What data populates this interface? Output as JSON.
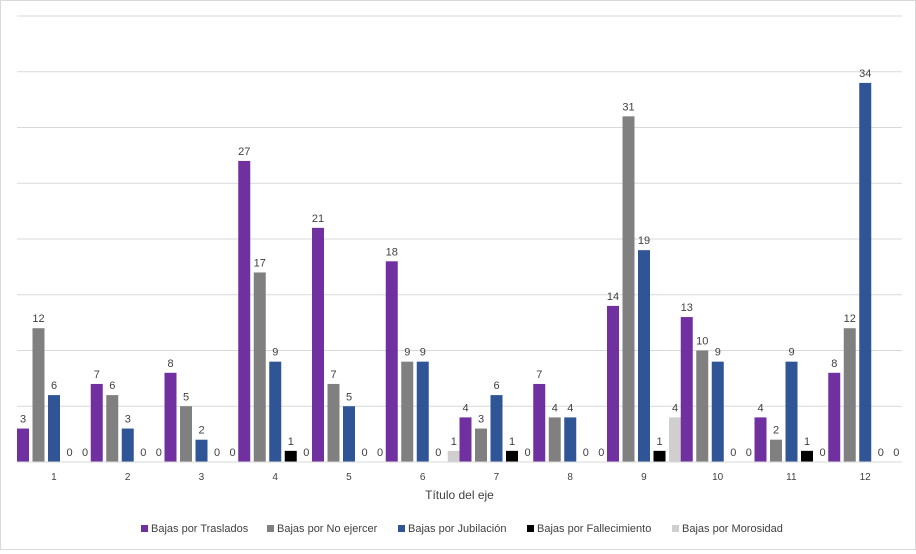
{
  "chart_data": {
    "type": "bar",
    "categories": [
      "1",
      "2",
      "3",
      "4",
      "5",
      "6",
      "7",
      "8",
      "9",
      "10",
      "11",
      "12"
    ],
    "series": [
      {
        "name": "Bajas por Traslados",
        "color": "#7030a0",
        "values": [
          3,
          7,
          8,
          27,
          21,
          18,
          4,
          7,
          14,
          13,
          4,
          8
        ]
      },
      {
        "name": "Bajas por No ejercer",
        "color": "#808080",
        "values": [
          12,
          6,
          5,
          17,
          7,
          9,
          3,
          4,
          31,
          10,
          2,
          12
        ]
      },
      {
        "name": "Bajas por Jubilación",
        "color": "#2f5597",
        "values": [
          6,
          3,
          2,
          9,
          5,
          9,
          6,
          4,
          19,
          9,
          9,
          34
        ]
      },
      {
        "name": "Bajas por Fallecimiento",
        "color": "#000000",
        "values": [
          0,
          0,
          0,
          1,
          0,
          0,
          1,
          0,
          1,
          0,
          1,
          0
        ]
      },
      {
        "name": "Bajas por Morosidad",
        "color": "#d0cece",
        "values": [
          0,
          0,
          0,
          0,
          0,
          1,
          0,
          0,
          4,
          0,
          0,
          0
        ]
      }
    ],
    "xlabel": "Título del eje",
    "ylabel": "",
    "ylim": [
      0,
      40
    ],
    "gridlines": true,
    "legend_position": "bottom",
    "data_labels": true
  }
}
